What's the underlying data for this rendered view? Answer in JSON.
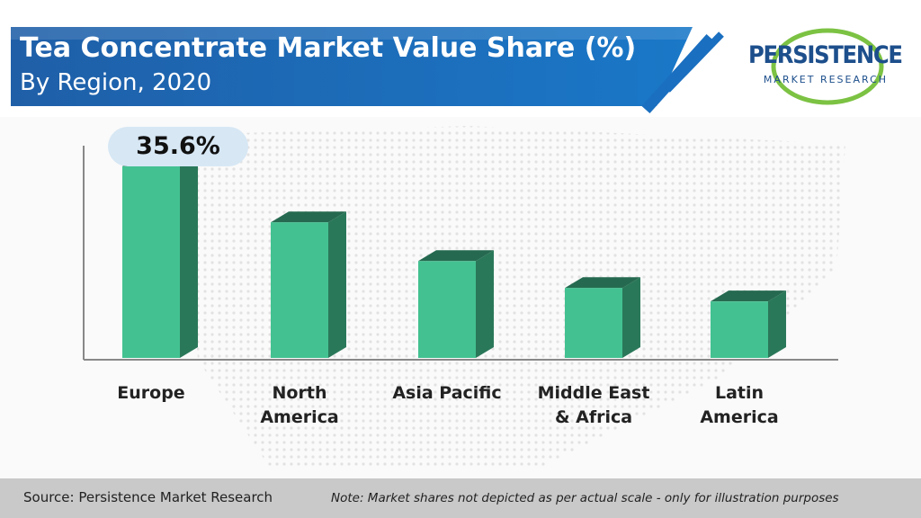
{
  "chart_data": {
    "type": "bar3d",
    "title": "Tea Concentrate Market Value Share (%)",
    "subtitle": "By Region, 2020",
    "categories": [
      "Europe",
      "North\nAmerica",
      "Asia Pacific",
      "Middle East\n& Africa",
      "Latin\nAmerica"
    ],
    "values": [
      35.6,
      25.2,
      18.0,
      13.0,
      10.5
    ],
    "value_labels": [
      "35.6%",
      null,
      null,
      null,
      null
    ],
    "color": "#43c191",
    "source": "Source: Persistence Market Research",
    "note": "Note: Market shares not depicted as per actual scale - only for illustration purposes"
  },
  "logo": {
    "name": "PERSISTENCE",
    "tagline": "MARKET RESEARCH"
  }
}
